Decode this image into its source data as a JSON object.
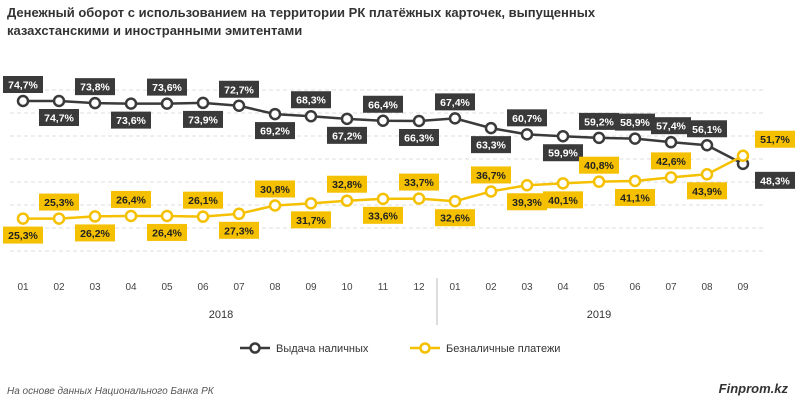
{
  "chart_data": {
    "type": "line",
    "title": "Денежный оборот с использованием на территории РК платёжных карточек, выпущенных казахстанскими и иностранными эмитентами",
    "x": [
      "01",
      "02",
      "03",
      "04",
      "05",
      "06",
      "07",
      "08",
      "09",
      "10",
      "11",
      "12",
      "01",
      "02",
      "03",
      "04",
      "05",
      "06",
      "07",
      "08",
      "09"
    ],
    "year_groups": [
      {
        "label": "2018",
        "count": 12
      },
      {
        "label": "2019",
        "count": 9
      }
    ],
    "series": [
      {
        "name": "Выдача наличных",
        "color": "#3a3a3a",
        "values": [
          74.7,
          74.7,
          73.8,
          73.6,
          73.6,
          73.9,
          72.7,
          69.2,
          68.3,
          67.2,
          66.4,
          66.3,
          67.4,
          63.3,
          60.7,
          59.9,
          59.2,
          58.9,
          57.4,
          56.1,
          48.3
        ],
        "label_pos": [
          "above",
          "below",
          "above",
          "below",
          "above",
          "below",
          "above",
          "below",
          "above",
          "below",
          "above",
          "below",
          "above",
          "below",
          "above",
          "below",
          "above",
          "above",
          "above",
          "above",
          "below"
        ]
      },
      {
        "name": "Безналичные платежи",
        "color": "#f5c000",
        "values": [
          25.3,
          25.3,
          26.2,
          26.4,
          26.4,
          26.1,
          27.3,
          30.8,
          31.7,
          32.8,
          33.6,
          33.7,
          32.6,
          36.7,
          39.3,
          40.1,
          40.8,
          41.1,
          42.6,
          43.9,
          51.7
        ],
        "label_pos": [
          "below",
          "above",
          "below",
          "above",
          "below",
          "above",
          "below",
          "above",
          "below",
          "above",
          "below",
          "above",
          "below",
          "above",
          "below",
          "below",
          "above",
          "below",
          "above",
          "below",
          "above"
        ]
      }
    ],
    "value_suffix": "%",
    "grid": true,
    "legend": "bottom"
  },
  "footer": "На основе данных Национального Банка РК",
  "brand": "Finprom.kz"
}
